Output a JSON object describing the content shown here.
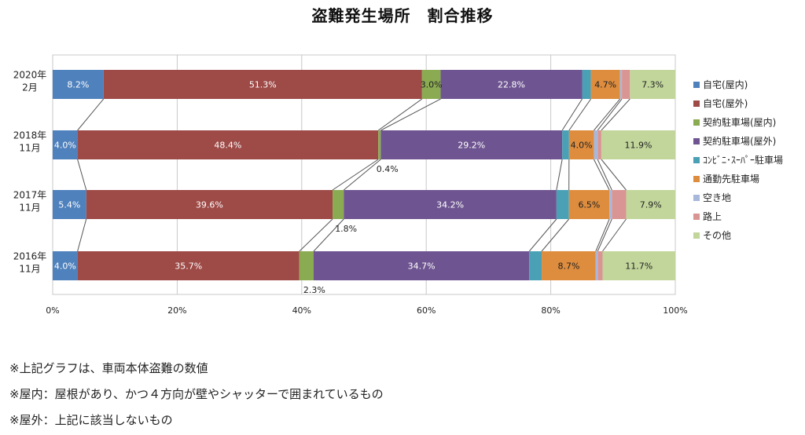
{
  "chart_data": {
    "type": "bar",
    "orientation": "horizontal",
    "stacked": true,
    "percent_stacked": true,
    "title": "盗難発生場所　割合推移",
    "categories": [
      "2020年\n2月",
      "2018年\n11月",
      "2017年\n11月",
      "2016年\n11月"
    ],
    "xlim": [
      0,
      100
    ],
    "x_ticks": [
      "0%",
      "20%",
      "40%",
      "60%",
      "80%",
      "100%"
    ],
    "grid": true,
    "legend_position": "right",
    "series": [
      {
        "name": "自宅(屋内)",
        "color": "#4f81bd",
        "values": [
          8.2,
          4.0,
          5.4,
          4.0
        ],
        "labels": [
          "8.2%",
          "4.0%",
          "5.4%",
          "4.0%"
        ]
      },
      {
        "name": "自宅(屋外)",
        "color": "#9e4a47",
        "values": [
          51.3,
          48.4,
          39.6,
          35.7
        ],
        "labels": [
          "51.3%",
          "48.4%",
          "39.6%",
          "35.7%"
        ]
      },
      {
        "name": "契約駐車場(屋内)",
        "color": "#8bab52",
        "values": [
          3.0,
          0.4,
          1.8,
          2.3
        ],
        "labels": [
          "3.0%",
          "0.4%",
          "1.8%",
          "2.3%"
        ]
      },
      {
        "name": "契約駐車場(屋外)",
        "color": "#6e5591",
        "values": [
          22.8,
          29.2,
          34.2,
          34.7
        ],
        "labels": [
          "22.8%",
          "29.2%",
          "34.2%",
          "34.7%"
        ]
      },
      {
        "name": "ｺﾝﾋﾞﾆ･ｽｰﾊﾟｰ駐車場",
        "color": "#4aa0b5",
        "values": [
          1.4,
          1.1,
          2.0,
          2.0
        ],
        "labels": [
          "",
          "",
          "",
          ""
        ]
      },
      {
        "name": "通勤先駐車場",
        "color": "#de8d3e",
        "values": [
          4.7,
          4.0,
          6.5,
          8.7
        ],
        "labels": [
          "4.7%",
          "4.0%",
          "6.5%",
          "8.7%"
        ]
      },
      {
        "name": "空き地",
        "color": "#a8b8db",
        "values": [
          0.3,
          0.6,
          0.4,
          0.3
        ],
        "labels": [
          "",
          "",
          "",
          ""
        ]
      },
      {
        "name": "路上",
        "color": "#d99594",
        "values": [
          1.3,
          0.6,
          2.3,
          0.8
        ],
        "labels": [
          "",
          "",
          "",
          ""
        ]
      },
      {
        "name": "その他",
        "color": "#c2d69b",
        "values": [
          7.3,
          11.9,
          7.9,
          11.7
        ],
        "labels": [
          "7.3%",
          "11.9%",
          "7.9%",
          "11.7%"
        ]
      }
    ],
    "outside_labels": [
      {
        "series": 2,
        "row": 1,
        "text": "0.4%"
      },
      {
        "series": 2,
        "row": 2,
        "text": "1.8%"
      },
      {
        "series": 2,
        "row": 3,
        "text": "2.3%"
      }
    ]
  },
  "notes": [
    "※上記グラフは、車両本体盗難の数値",
    "※屋内：屋根があり、かつ４方向が壁やシャッターで囲まれているもの",
    "※屋外：上記に該当しないもの"
  ]
}
